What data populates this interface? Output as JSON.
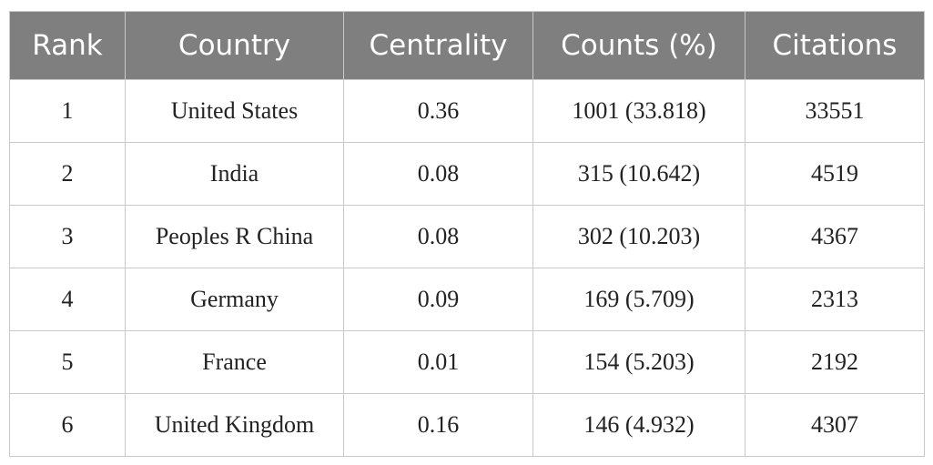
{
  "table": {
    "header": [
      "Rank",
      "Country",
      "Centrality",
      "Counts (%)",
      "Citations"
    ],
    "rows": [
      [
        "1",
        "United States",
        "0.36",
        "1001 (33.818)",
        "33551"
      ],
      [
        "2",
        "India",
        "0.08",
        "315 (10.642)",
        "4519"
      ],
      [
        "3",
        "Peoples R China",
        "0.08",
        "302 (10.203)",
        "4367"
      ],
      [
        "4",
        "Germany",
        "0.09",
        "169 (5.709)",
        "2313"
      ],
      [
        "5",
        "France",
        "0.01",
        "154 (5.203)",
        "2192"
      ],
      [
        "6",
        "United Kingdom",
        "0.16",
        "146 (4.932)",
        "4307"
      ]
    ]
  }
}
